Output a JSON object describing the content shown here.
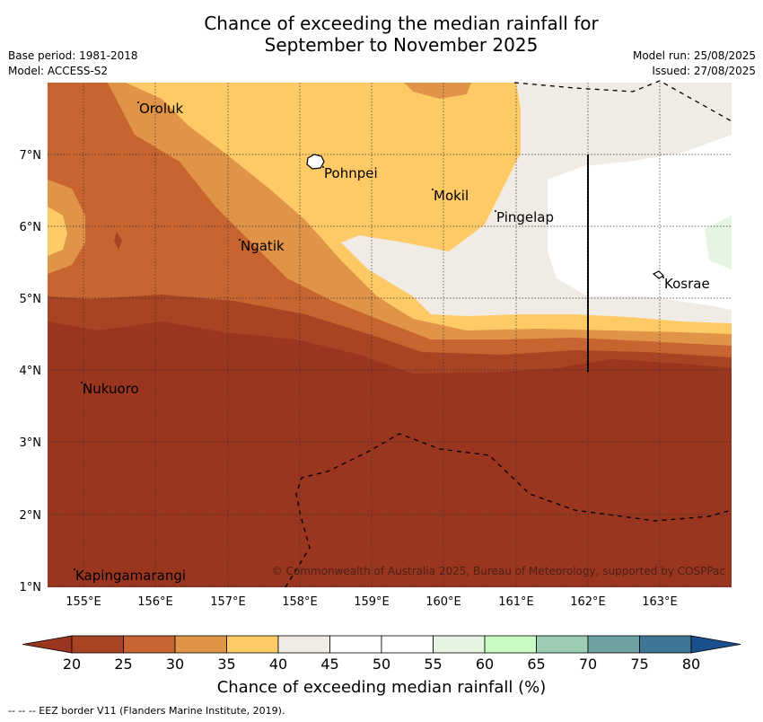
{
  "header": {
    "title_line1": "Chance of exceeding the median rainfall for",
    "title_line2": "September to November 2025",
    "base_period": "Base period: 1981-2018",
    "model": "Model: ACCESS-S2",
    "model_run": "Model run: 25/08/2025",
    "issued": "Issued: 27/08/2025"
  },
  "map": {
    "x_ticks": [
      "155°E",
      "156°E",
      "157°E",
      "158°E",
      "159°E",
      "160°E",
      "161°E",
      "162°E",
      "163°E"
    ],
    "y_ticks": [
      "7°N",
      "6°N",
      "5°N",
      "4°N",
      "3°N",
      "2°N",
      "1°N"
    ],
    "places": [
      "Oroluk",
      "Pohnpei",
      "Mokil",
      "Pingelap",
      "Ngatik",
      "Kosrae",
      "Nukuoro",
      "Kapingamarangi"
    ],
    "credit": "© Commonwealth of Australia 2025, Bureau of Meteorology, supported by COSPPac"
  },
  "colorbar": {
    "labels": [
      "20",
      "25",
      "30",
      "35",
      "40",
      "45",
      "50",
      "55",
      "60",
      "65",
      "70",
      "75",
      "80"
    ],
    "colors": [
      "#9a3520",
      "#a84423",
      "#c8642f",
      "#e09448",
      "#fdca66",
      "#f0ebe5",
      "#ffffff",
      "#ffffff",
      "#e5f5e1",
      "#c7fbc2",
      "#9ccdb2",
      "#6ea2a2",
      "#3f7696",
      "#1a4e8c"
    ],
    "title": "Chance of exceeding median rainfall (%)"
  },
  "footnote": "--  --  -- EEZ border V11 (Flanders Marine Institute, 2019)."
}
